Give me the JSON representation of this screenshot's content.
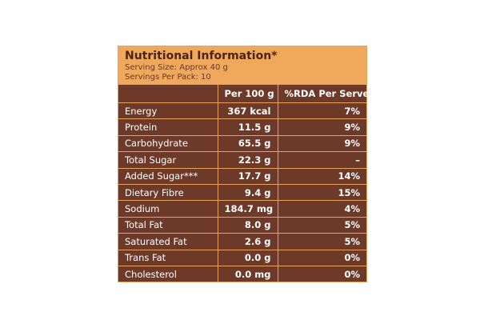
{
  "header": {
    "title": "Nutritional Information*",
    "serving_size": "Serving Size: Approx 40 g",
    "servings_per_pack": "Servings Per Pack: 10"
  },
  "table": {
    "columns": [
      "Per 100 g",
      "%RDA Per Serve**"
    ],
    "rows": [
      [
        "Energy",
        "367 kcal",
        "7%"
      ],
      [
        "Protein",
        "11.5 g",
        "9%"
      ],
      [
        "Carbohydrate",
        "65.5 g",
        "9%"
      ],
      [
        "Total Sugar",
        "22.3 g",
        "–"
      ],
      [
        "Added Sugar***",
        "17.7 g",
        "14%"
      ],
      [
        "Dietary Fibre",
        "9.4 g",
        "15%"
      ],
      [
        "Sodium",
        "184.7 mg",
        "4%"
      ],
      [
        "Total Fat",
        "8.0 g",
        "5%"
      ],
      [
        "Saturated Fat",
        "2.6 g",
        "5%"
      ],
      [
        "Trans Fat",
        "0.0 g",
        "0%"
      ],
      [
        "Cholesterol",
        "0.0 mg",
        "0%"
      ]
    ]
  }
}
